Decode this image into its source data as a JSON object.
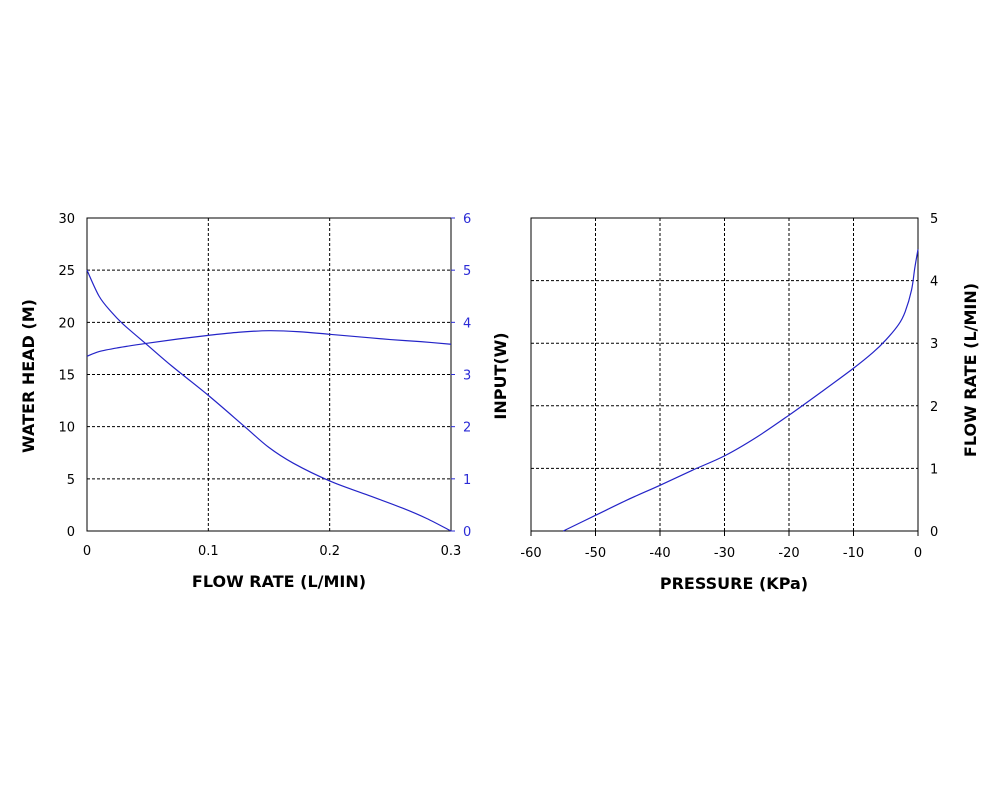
{
  "chart_data": [
    {
      "type": "line",
      "xlabel": "FLOW RATE (L/MIN)",
      "ylabel": "WATER HEAD (M)",
      "xlim": [
        0,
        0.3
      ],
      "ylim": [
        0,
        30
      ],
      "y2lim": [
        0,
        6
      ],
      "x_ticks": [
        "0",
        "0.1",
        "0.2",
        "0.3"
      ],
      "y_ticks": [
        "0",
        "5",
        "10",
        "15",
        "20",
        "25",
        "30"
      ],
      "y2_ticks": [
        "0",
        "1",
        "2",
        "3",
        "4",
        "5",
        "6"
      ],
      "grid": true,
      "series": [
        {
          "axis": "left",
          "color": "#2424c8",
          "x": [
            0,
            0.01,
            0.02,
            0.03,
            0.05,
            0.07,
            0.1,
            0.13,
            0.15,
            0.17,
            0.2,
            0.23,
            0.26,
            0.28,
            0.3
          ],
          "y": [
            25,
            22.5,
            21,
            19.8,
            17.8,
            15.8,
            13,
            10,
            8,
            6.5,
            4.8,
            3.5,
            2.2,
            1.2,
            0
          ]
        },
        {
          "axis": "right",
          "color": "#2424c8",
          "x": [
            0,
            0.01,
            0.025,
            0.05,
            0.075,
            0.1,
            0.125,
            0.15,
            0.175,
            0.2,
            0.225,
            0.25,
            0.275,
            0.3
          ],
          "y": [
            3.35,
            3.44,
            3.51,
            3.6,
            3.68,
            3.75,
            3.81,
            3.84,
            3.82,
            3.77,
            3.72,
            3.67,
            3.63,
            3.58
          ]
        }
      ]
    },
    {
      "type": "line",
      "xlabel": "PRESSURE (KPa)",
      "ylabel": "INPUT(W)",
      "y2label": "FLOW RATE (L/MIN)",
      "xlim": [
        -60,
        0
      ],
      "ylim": [
        0,
        5
      ],
      "x_ticks": [
        "-60",
        "-50",
        "-40",
        "-30",
        "-20",
        "-10",
        "0"
      ],
      "y2_ticks": [
        "0",
        "1",
        "2",
        "3",
        "4",
        "5"
      ],
      "grid": true,
      "series": [
        {
          "axis": "right",
          "color": "#2424c8",
          "x": [
            -55,
            -50,
            -45,
            -40,
            -35,
            -30,
            -25,
            -20,
            -15,
            -10,
            -7,
            -5,
            -3,
            -2,
            -1,
            -0.5,
            0
          ],
          "y": [
            0,
            0.25,
            0.5,
            0.73,
            0.97,
            1.2,
            1.5,
            1.85,
            2.22,
            2.6,
            2.85,
            3.05,
            3.3,
            3.5,
            3.85,
            4.2,
            4.5
          ]
        }
      ]
    }
  ]
}
